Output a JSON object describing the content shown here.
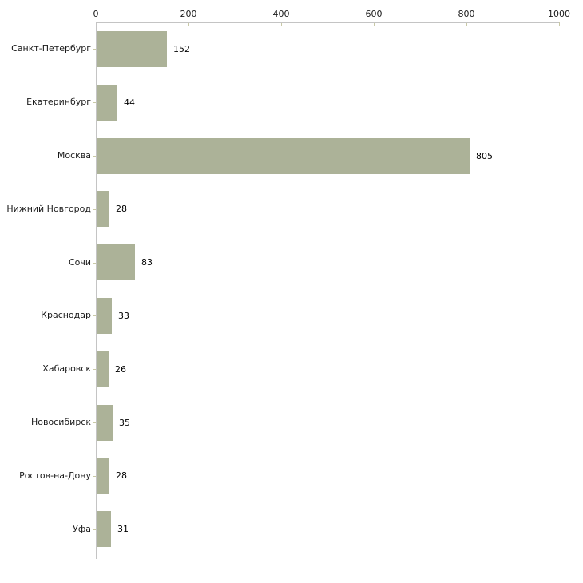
{
  "chart_data": {
    "type": "bar",
    "orientation": "horizontal",
    "title": "",
    "xlabel": "",
    "ylabel": "",
    "categories": [
      "Санкт-Петербург",
      "Екатеринбург",
      "Москва",
      "Нижний Новгород",
      "Сочи",
      "Краснодар",
      "Хабаровск",
      "Новосибирск",
      "Ростов-на-Дону",
      "Уфа"
    ],
    "values": [
      152,
      44,
      805,
      28,
      83,
      33,
      26,
      35,
      28,
      31
    ],
    "value_labels": [
      "152",
      "44",
      "805",
      "28",
      "83",
      "33",
      "26",
      "35",
      "28",
      "31"
    ],
    "xlim": [
      0,
      1000
    ],
    "x_ticks": [
      0,
      200,
      400,
      600,
      800,
      1000
    ],
    "x_tick_labels": [
      "0",
      "200",
      "400",
      "600",
      "800",
      "1000"
    ],
    "grid": false,
    "legend": null,
    "axis_position": "top",
    "colors": {
      "bar_fill": "#acb298",
      "axis_line": "#c4c4c4",
      "tick_mark": "#c8c8a6",
      "text": "#1a1a1a"
    }
  }
}
